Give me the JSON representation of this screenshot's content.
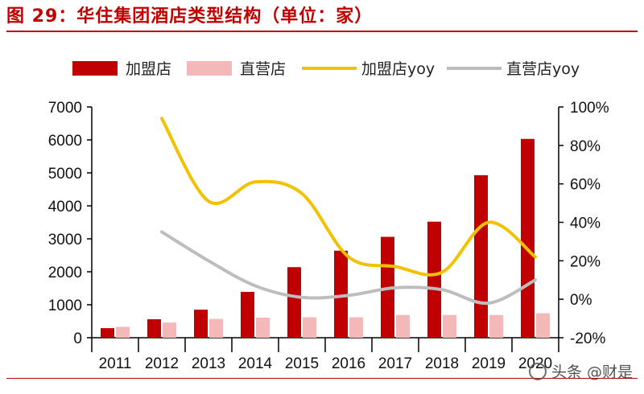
{
  "title": "图 29：华住集团酒店类型结构（单位：家）",
  "watermark": "头条 @财是",
  "chart_data": {
    "type": "bar+line",
    "categories": [
      "2011",
      "2012",
      "2013",
      "2014",
      "2015",
      "2016",
      "2017",
      "2018",
      "2019",
      "2020"
    ],
    "series": [
      {
        "name": "加盟店",
        "type": "bar",
        "axis": "left",
        "color": "#c00000",
        "values": [
          290,
          560,
          850,
          1390,
          2140,
          2640,
          3060,
          3520,
          4930,
          6030
        ]
      },
      {
        "name": "直营店",
        "type": "bar",
        "axis": "left",
        "color": "#f4b8b8",
        "values": [
          330,
          460,
          570,
          610,
          620,
          620,
          690,
          690,
          690,
          740
        ]
      },
      {
        "name": "加盟店yoy",
        "type": "line",
        "axis": "right",
        "color": "#f2c200",
        "values": [
          null,
          0.94,
          0.51,
          0.61,
          0.55,
          0.22,
          0.17,
          0.14,
          0.4,
          0.22
        ]
      },
      {
        "name": "直营店yoy",
        "type": "line",
        "axis": "right",
        "color": "#bdbdbd",
        "values": [
          null,
          0.35,
          0.2,
          0.07,
          0.01,
          0.02,
          0.06,
          0.05,
          -0.02,
          0.1
        ]
      }
    ],
    "y_left": {
      "min": 0,
      "max": 7000,
      "ticks": [
        "0",
        "1000",
        "2000",
        "3000",
        "4000",
        "5000",
        "6000",
        "7000"
      ]
    },
    "y_right": {
      "min": -0.2,
      "max": 1.0,
      "ticks": [
        "-20%",
        "0%",
        "20%",
        "40%",
        "60%",
        "80%",
        "100%"
      ]
    },
    "legend_position": "top",
    "grid": false
  }
}
